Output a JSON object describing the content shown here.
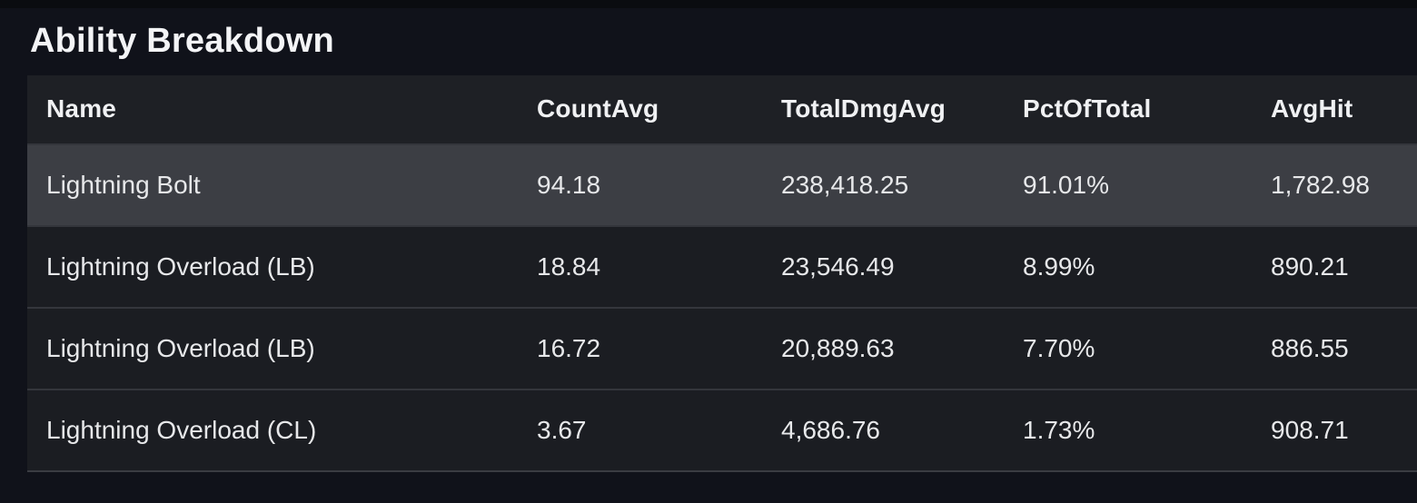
{
  "panel": {
    "title": "Ability Breakdown"
  },
  "table": {
    "columns": [
      {
        "key": "name",
        "label": "Name"
      },
      {
        "key": "countAvg",
        "label": "CountAvg"
      },
      {
        "key": "totalDmgAvg",
        "label": "TotalDmgAvg"
      },
      {
        "key": "pctOfTotal",
        "label": "PctOfTotal"
      },
      {
        "key": "avgHit",
        "label": "AvgHit"
      }
    ],
    "rows": [
      {
        "name": "Lightning Bolt",
        "countAvg": "94.18",
        "totalDmgAvg": "238,418.25",
        "pctOfTotal": "91.01%",
        "avgHit": "1,782.98",
        "highlighted": true
      },
      {
        "name": "Lightning Overload (LB)",
        "countAvg": "18.84",
        "totalDmgAvg": "23,546.49",
        "pctOfTotal": "8.99%",
        "avgHit": "890.21",
        "highlighted": false
      },
      {
        "name": "Lightning Overload (LB)",
        "countAvg": "16.72",
        "totalDmgAvg": "20,889.63",
        "pctOfTotal": "7.70%",
        "avgHit": "886.55",
        "highlighted": false
      },
      {
        "name": "Lightning Overload (CL)",
        "countAvg": "3.67",
        "totalDmgAvg": "4,686.76",
        "pctOfTotal": "1.73%",
        "avgHit": "908.71",
        "highlighted": false
      }
    ]
  },
  "colors": {
    "page-bg": "#10121a",
    "header-bg": "#1e2025",
    "row-bg": "#1b1d22",
    "row-highlight-bg": "#3c3e44",
    "separator": "#34363c",
    "title-text": "#f3f4f6",
    "cell-text": "#e7e8ea"
  }
}
